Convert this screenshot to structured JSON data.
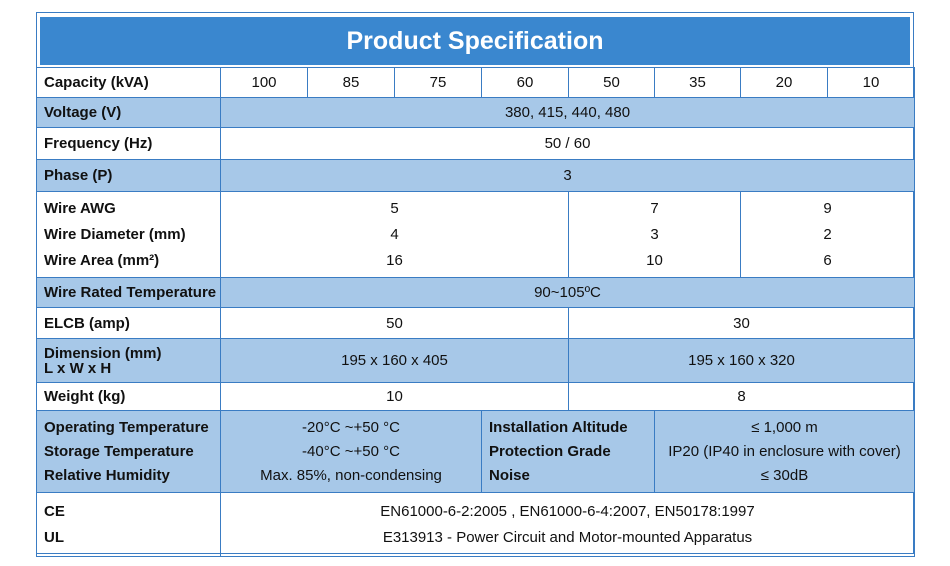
{
  "title": "Product Specification",
  "capacity": {
    "label": "Capacity (kVA)",
    "values": [
      "100",
      "85",
      "75",
      "60",
      "50",
      "35",
      "20",
      "10"
    ]
  },
  "voltage": {
    "label": "Voltage (V)",
    "value": "380, 415, 440, 480"
  },
  "frequency": {
    "label": "Frequency (Hz)",
    "value": "50 / 60"
  },
  "phase": {
    "label": "Phase (P)",
    "value": "3"
  },
  "wire": {
    "labels": [
      "Wire AWG",
      "Wire Diameter (mm)",
      "Wire Area (mm²)"
    ],
    "groups": [
      {
        "awg": "5",
        "diameter": "4",
        "area": "16"
      },
      {
        "awg": "7",
        "diameter": "3",
        "area": "10"
      },
      {
        "awg": "9",
        "diameter": "2",
        "area": "6"
      }
    ]
  },
  "wire_rated_temperature": {
    "label": "Wire Rated Temperature",
    "value": "90~105ºC"
  },
  "elcb": {
    "label": "ELCB (amp)",
    "values": [
      "50",
      "30"
    ]
  },
  "dimension": {
    "label_line1": "Dimension (mm)",
    "label_line2": "L x W x H",
    "values": [
      "195 x 160 x 405",
      "195 x 160 x 320"
    ]
  },
  "weight": {
    "label": "Weight (kg)",
    "values": [
      "10",
      "8"
    ]
  },
  "environment": {
    "left_labels": [
      "Operating Temperature",
      "Storage Temperature",
      "Relative Humidity"
    ],
    "left_values": [
      "-20°C ~+50 °C",
      "-40°C ~+50 °C",
      "Max. 85%, non-condensing"
    ],
    "right_labels": [
      "Installation Altitude",
      "Protection Grade",
      "Noise"
    ],
    "right_values": [
      "≤ 1,000 m",
      "IP20 (IP40 in enclosure with cover)",
      "≤ 30dB"
    ]
  },
  "certifications": {
    "labels": [
      "CE",
      "UL"
    ],
    "values": [
      "EN61000-6-2:2005 , EN61000-6-4:2007, EN50178:1997",
      "E313913 - Power Circuit and Motor-mounted Apparatus"
    ]
  }
}
